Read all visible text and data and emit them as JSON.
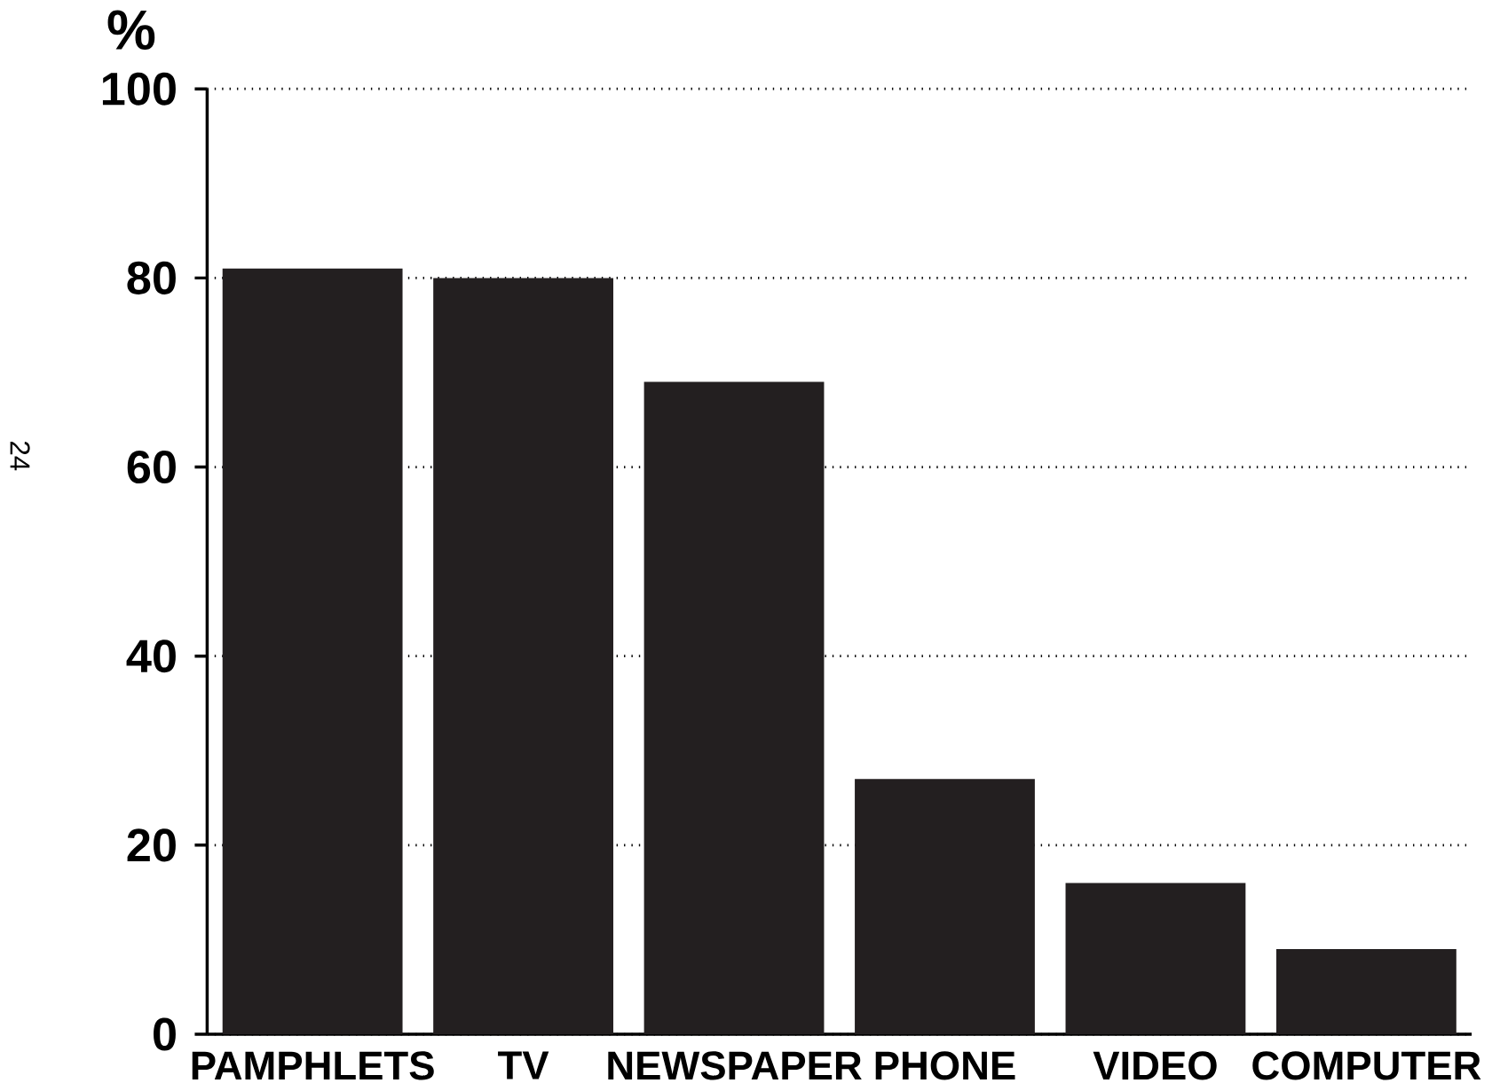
{
  "chart_data": {
    "type": "bar",
    "ylabel": "%",
    "categories": [
      "PAMPHLETS",
      "TV",
      "NEWSPAPER",
      "PHONE",
      "VIDEO",
      "COMPUTER"
    ],
    "values": [
      81,
      80,
      69,
      27,
      16,
      9
    ],
    "color": "#231f20",
    "ylim": [
      0,
      100
    ],
    "yticks": [
      0,
      20,
      40,
      60,
      80,
      100
    ],
    "grid": "y",
    "annotations": [
      "24"
    ]
  }
}
